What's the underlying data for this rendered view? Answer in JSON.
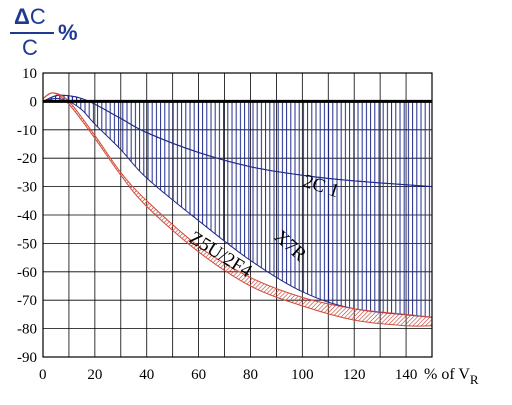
{
  "chart_data": {
    "type": "area",
    "ylabel": {
      "numerator_symbol": "Δ",
      "numerator_letter": "C",
      "denominator": "C",
      "unit": "%"
    },
    "xlabel": {
      "prefix": "% of V",
      "subscript": "R"
    },
    "xlim": [
      0,
      150
    ],
    "ylim": [
      -90,
      10
    ],
    "x_ticks": [
      "0",
      "20",
      "40",
      "60",
      "80",
      "100",
      "120",
      "140"
    ],
    "x_tick_values": [
      0,
      20,
      40,
      60,
      80,
      100,
      120,
      140
    ],
    "y_ticks": [
      "10",
      "0",
      "-10",
      "-20",
      "-30",
      "-40",
      "-50",
      "-60",
      "-70",
      "-80",
      "-90"
    ],
    "y_tick_values": [
      10,
      0,
      -10,
      -20,
      -30,
      -40,
      -50,
      -60,
      -70,
      -80,
      -90
    ],
    "grid": true,
    "series": [
      {
        "name": "2C 1",
        "upper": {
          "x": [
            0,
            10,
            20,
            30,
            40,
            60,
            80,
            100,
            120,
            150
          ],
          "y": [
            0,
            0,
            0,
            0,
            0,
            0,
            0,
            0,
            0,
            0
          ]
        },
        "lower": {
          "x": [
            0,
            5,
            10,
            15,
            20,
            30,
            40,
            60,
            80,
            100,
            120,
            150
          ],
          "y": [
            0,
            2,
            2,
            1,
            -1,
            -6,
            -11,
            -18,
            -23,
            -26,
            -28,
            -30
          ]
        },
        "color": "#1f2a8c"
      },
      {
        "name": "X7R",
        "upper": {
          "x": [
            0,
            5,
            10,
            15,
            20,
            30,
            40,
            60,
            80,
            100,
            120,
            150
          ],
          "y": [
            0,
            2,
            2,
            1,
            -1,
            -6,
            -11,
            -18,
            -23,
            -26,
            -28,
            -30
          ]
        },
        "lower": {
          "x": [
            0,
            5,
            10,
            15,
            20,
            30,
            40,
            60,
            80,
            100,
            120,
            150
          ],
          "y": [
            0,
            1,
            0,
            -3,
            -8,
            -17,
            -27,
            -42,
            -56,
            -67,
            -73,
            -76
          ]
        },
        "color": "#1f2a8c"
      },
      {
        "name": "Z5U/2F4",
        "upper": {
          "x": [
            0,
            4,
            10,
            20,
            30,
            40,
            60,
            80,
            100,
            120,
            140,
            150
          ],
          "y": [
            1,
            3,
            0,
            -12,
            -25,
            -35,
            -51,
            -62,
            -69,
            -73,
            -75,
            -76
          ]
        },
        "lower": {
          "x": [
            0,
            4,
            10,
            20,
            30,
            40,
            60,
            80,
            100,
            120,
            140,
            150
          ],
          "y": [
            1,
            3,
            -1,
            -13,
            -26,
            -37,
            -53,
            -65,
            -72,
            -77,
            -79,
            -79
          ]
        },
        "color": "#d44a3a"
      }
    ],
    "annotations": [
      "2C 1",
      "X7R",
      "Z5U/2F4"
    ]
  }
}
